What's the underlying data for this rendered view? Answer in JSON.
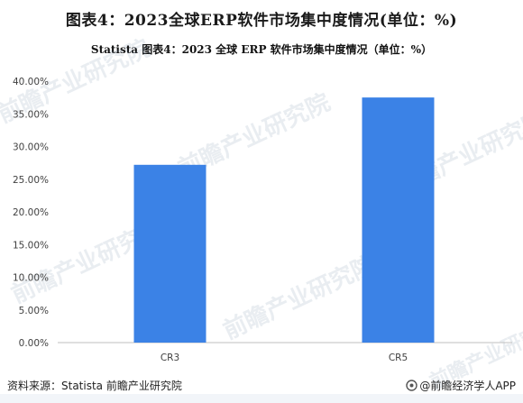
{
  "header": {
    "title": "图表4：2023全球ERP软件市场集中度情况(单位：%)"
  },
  "footer": {
    "source": "资料来源：Statista 前瞻产业研究院",
    "brand": "@前瞻经济学人APP"
  },
  "watermark": {
    "text": "前瞻产业研究院"
  },
  "colors": {
    "bar": "#3B82E6",
    "axis": "#bfbfbf",
    "text": "#404040"
  },
  "chart_data": {
    "type": "bar",
    "title": "Statista  图表4：2023 全球 ERP 软件市场集中度情况（单位：%）",
    "categories": [
      "CR3",
      "CR5"
    ],
    "series": [
      {
        "values": [
          27.2,
          37.5
        ]
      }
    ],
    "ylim": [
      0,
      40
    ],
    "yticks": [
      "0.00%",
      "5.00%",
      "10.00%",
      "15.00%",
      "20.00%",
      "25.00%",
      "30.00%",
      "35.00%",
      "40.00%"
    ],
    "ytick_values": [
      0,
      5,
      10,
      15,
      20,
      25,
      30,
      35,
      40
    ],
    "grid": false,
    "legend": "none",
    "xlabel": "",
    "ylabel": ""
  }
}
